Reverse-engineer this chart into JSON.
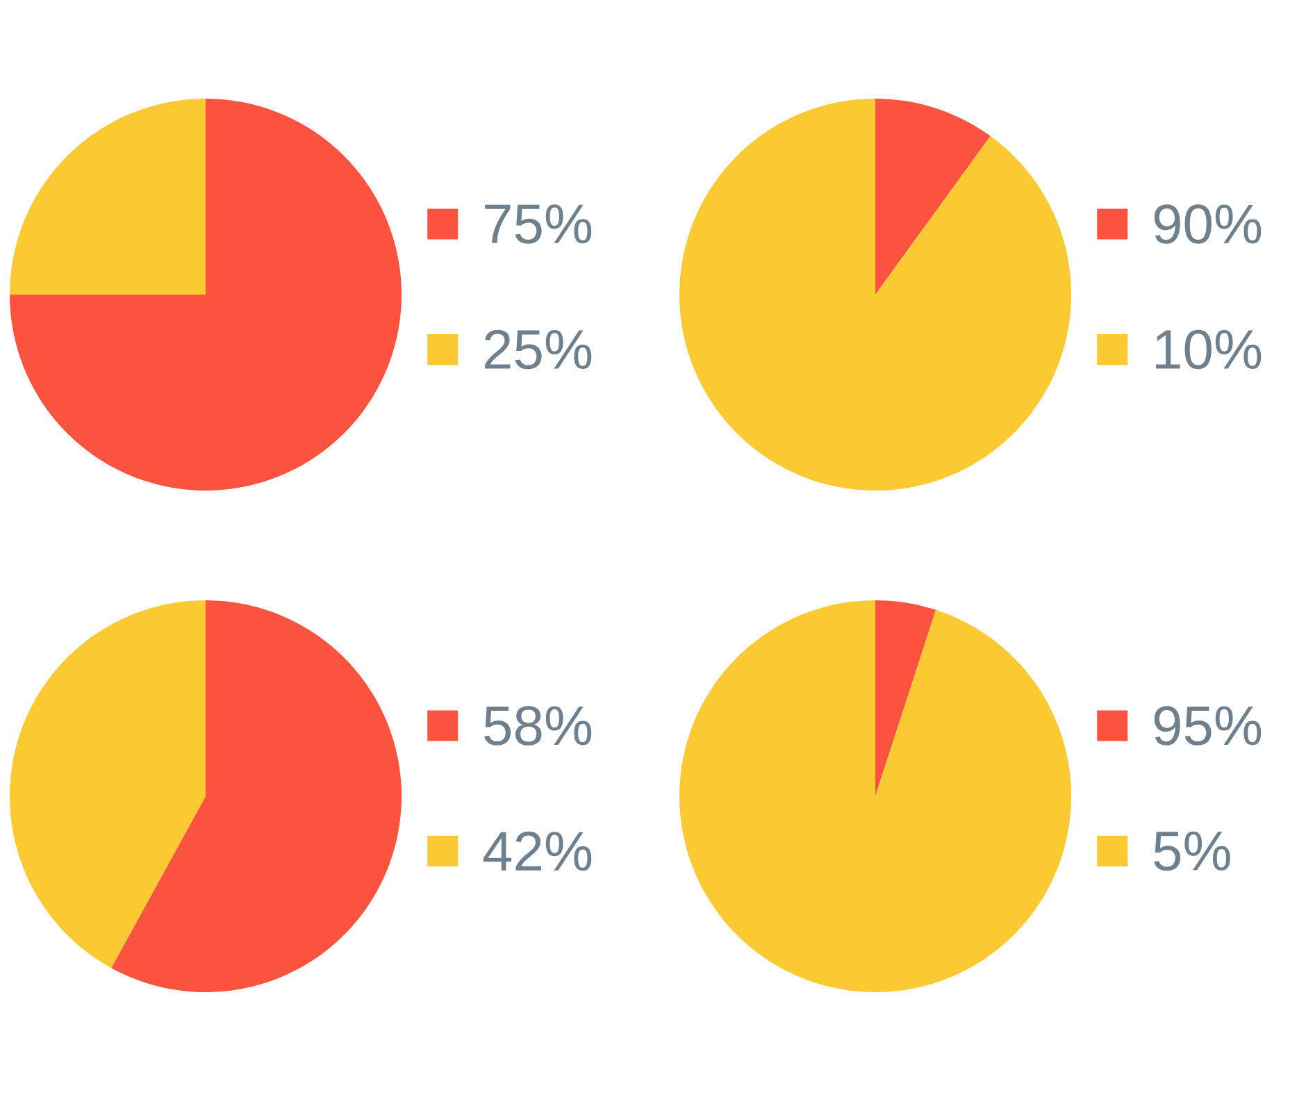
{
  "chart_data": [
    {
      "type": "pie",
      "categories": [
        "75%",
        "25%"
      ],
      "values": [
        75,
        25
      ],
      "colors": [
        "#fc5340",
        "#fbc931"
      ],
      "legend": "right"
    },
    {
      "type": "pie",
      "categories": [
        "90%",
        "10%"
      ],
      "values": [
        10,
        90
      ],
      "colors": [
        "#fc5340",
        "#fbc931"
      ],
      "legend": "right"
    },
    {
      "type": "pie",
      "categories": [
        "58%",
        "42%"
      ],
      "values": [
        58,
        42
      ],
      "colors": [
        "#fc5340",
        "#fbc931"
      ],
      "legend": "right"
    },
    {
      "type": "pie",
      "categories": [
        "95%",
        "5%"
      ],
      "values": [
        5,
        95
      ],
      "colors": [
        "#fc5340",
        "#fbc931"
      ],
      "legend": "right"
    }
  ]
}
